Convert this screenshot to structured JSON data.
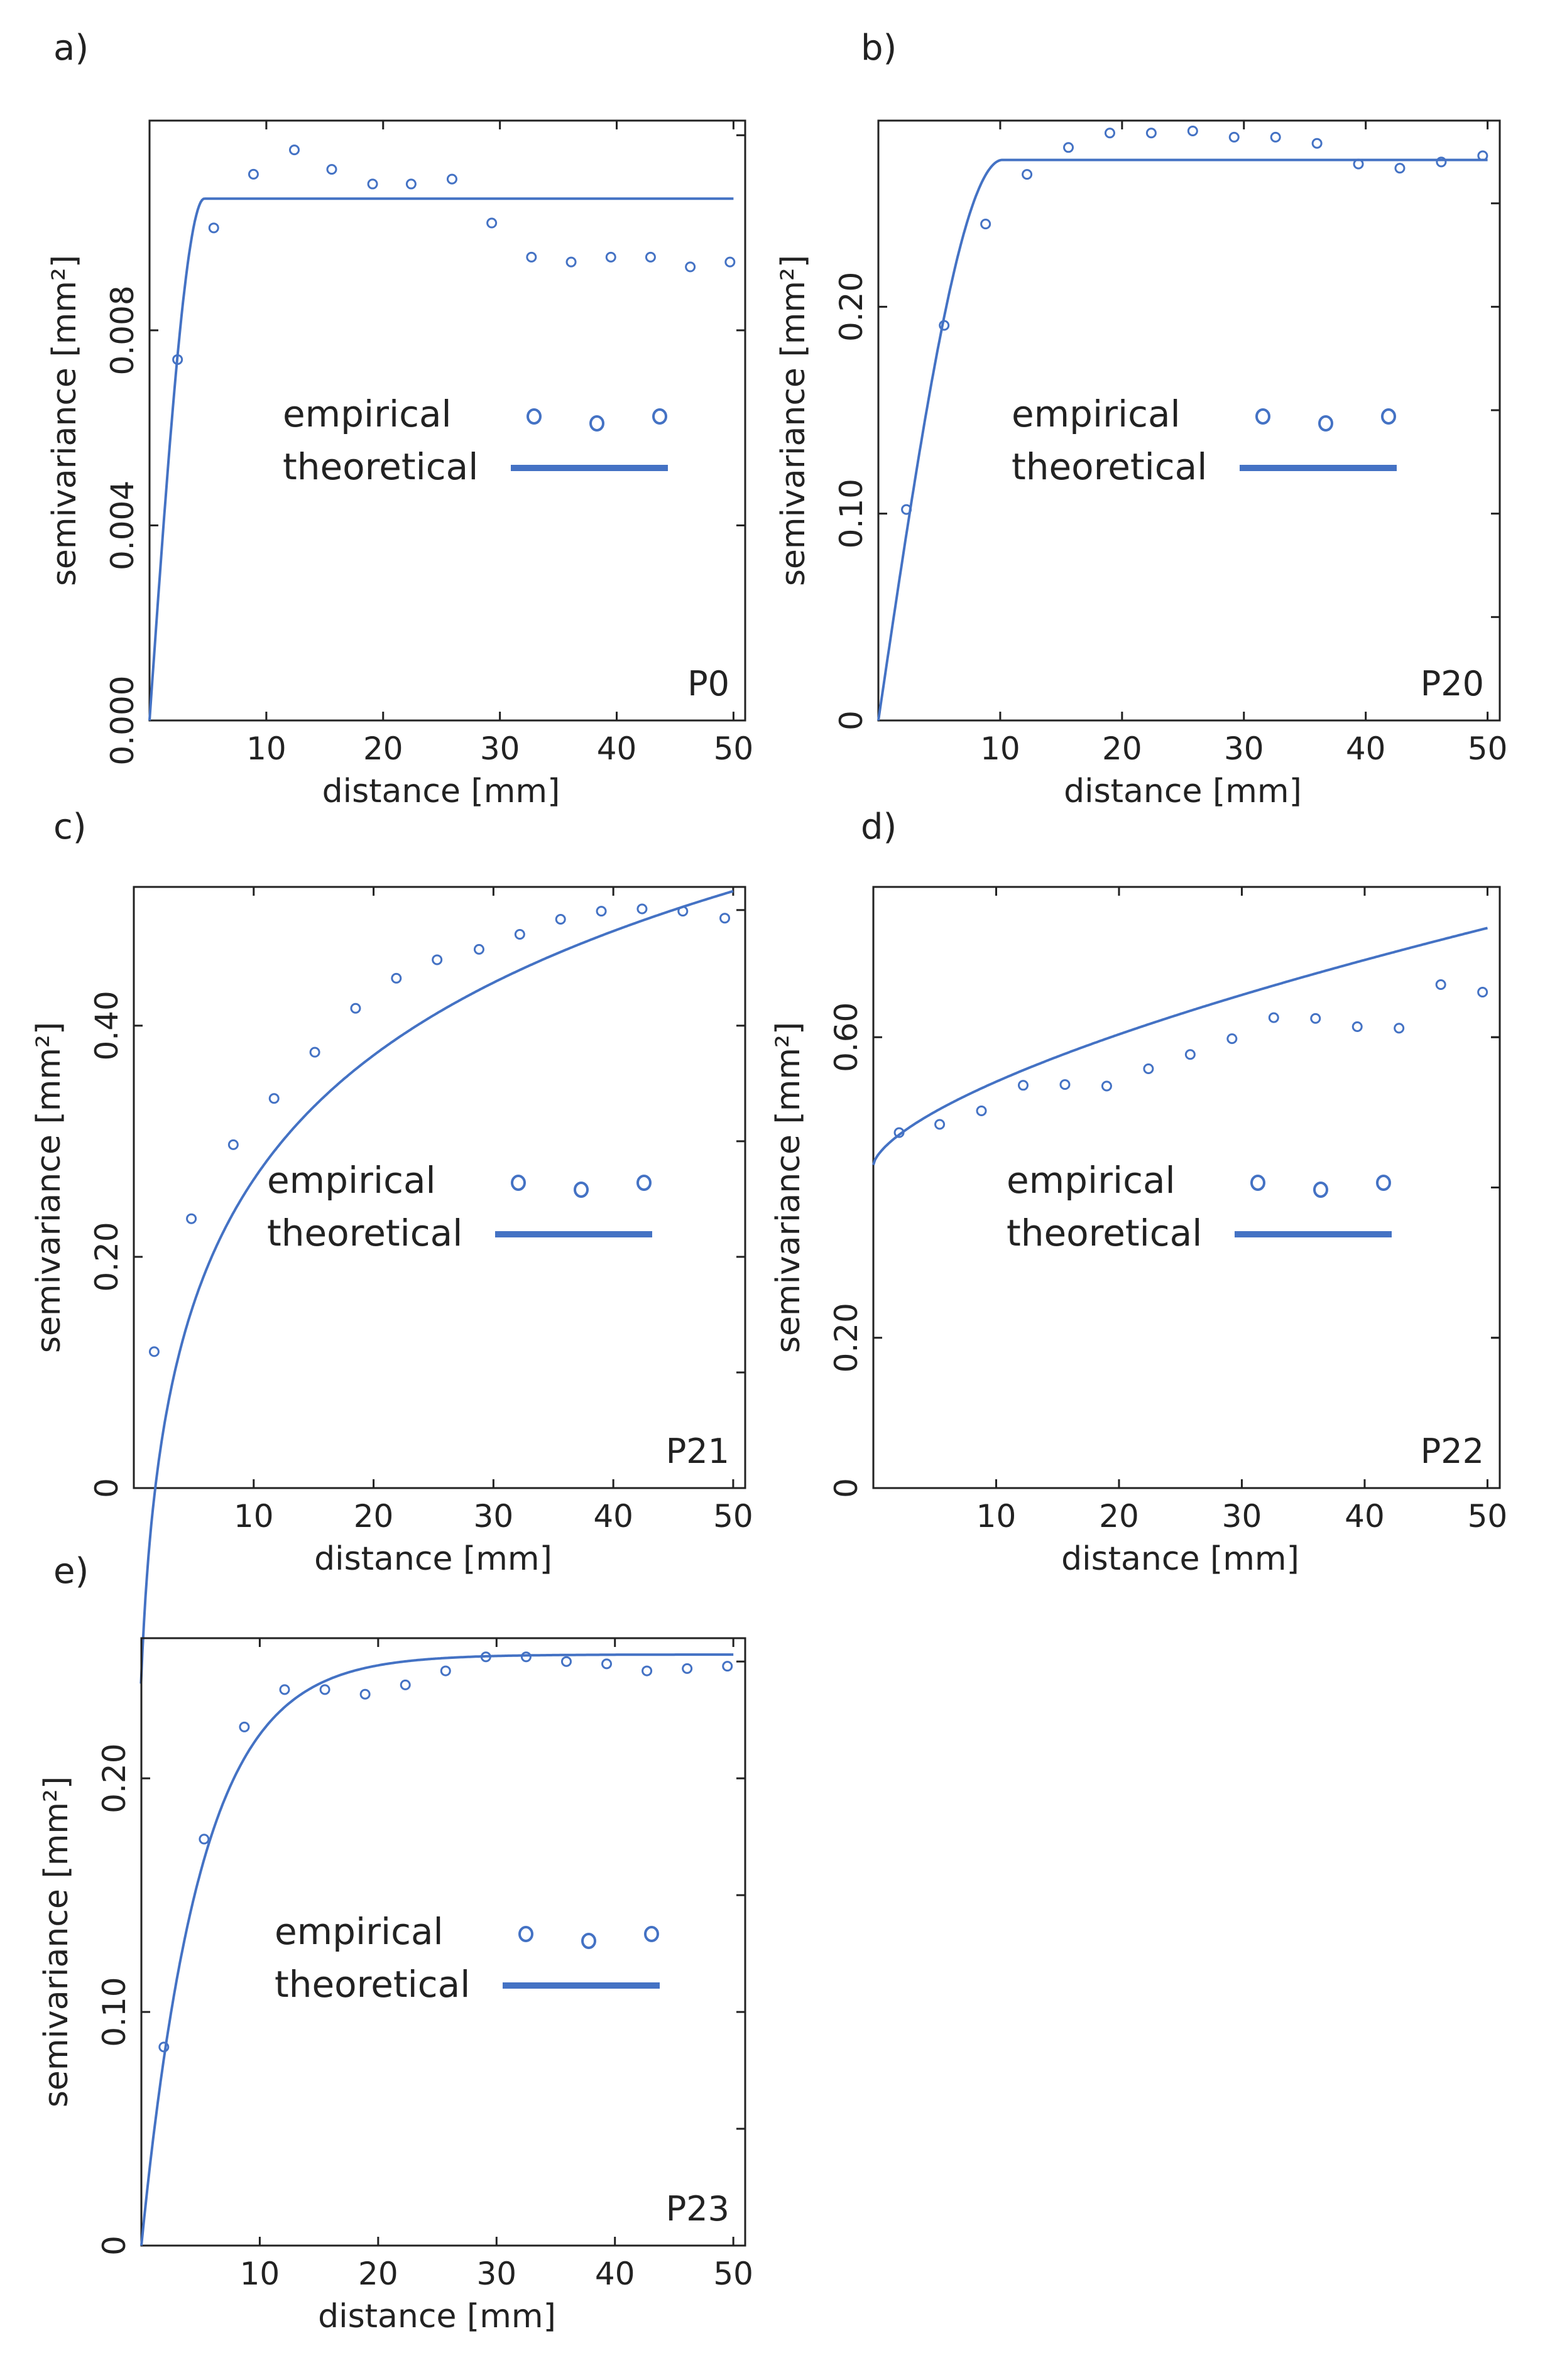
{
  "colors": {
    "series": "#4472c4",
    "axis": "#222222",
    "background": "#ffffff"
  },
  "legend": {
    "empirical": "empirical",
    "theoretical": "theoretical"
  },
  "chart_data": [
    {
      "panel": "a)",
      "id": "P0",
      "type": "scatter",
      "xlabel": "distance [mm]",
      "ylabel": "semivariance [mm²]",
      "xlim": [
        0,
        51
      ],
      "ylim": [
        0,
        0.0123
      ],
      "xticks": [
        10,
        20,
        30,
        40,
        50
      ],
      "yticks": [
        0,
        0.004,
        0.008
      ],
      "ytick_labels": [
        "0.000",
        "0.004",
        "0.008"
      ],
      "extra_right_ticks": [
        0.012
      ],
      "empirical": {
        "x": [
          2.4,
          5.5,
          8.9,
          12.4,
          15.6,
          19.1,
          22.4,
          25.9,
          29.3,
          32.7,
          36.1,
          39.5,
          42.9,
          46.3,
          49.7
        ],
        "y": [
          0.0074,
          0.0101,
          0.0112,
          0.0117,
          0.0113,
          0.011,
          0.011,
          0.0111,
          0.0102,
          0.0095,
          0.0094,
          0.0095,
          0.0095,
          0.0093,
          0.0094
        ]
      },
      "theoretical": {
        "model": "spherical",
        "nugget": 0,
        "sill": 0.0107,
        "range": 4.7,
        "xmax": 50
      }
    },
    {
      "panel": "b)",
      "id": "P20",
      "type": "scatter",
      "xlabel": "distance [mm]",
      "ylabel": "semivariance [mm²]",
      "xlim": [
        0,
        51
      ],
      "ylim": [
        0,
        0.29
      ],
      "xticks": [
        10,
        20,
        30,
        40,
        50
      ],
      "yticks": [
        0,
        0.1,
        0.2
      ],
      "ytick_labels": [
        "0",
        "0.10",
        "0.20"
      ],
      "extra_right_ticks": [
        0.05,
        0.15,
        0.25
      ],
      "empirical": {
        "x": [
          2.3,
          5.4,
          8.8,
          12.2,
          15.6,
          19.0,
          22.4,
          25.8,
          29.2,
          32.6,
          36.0,
          39.4,
          42.8,
          46.2,
          49.6
        ],
        "y": [
          0.102,
          0.191,
          0.24,
          0.264,
          0.277,
          0.284,
          0.284,
          0.285,
          0.282,
          0.282,
          0.279,
          0.269,
          0.267,
          0.27,
          0.273
        ],
        "xcoords_note": ""
      },
      "theoretical": {
        "model": "spherical",
        "nugget": 0,
        "sill": 0.271,
        "range": 10.2,
        "xmax": 50
      }
    },
    {
      "panel": "c)",
      "id": "P21",
      "type": "scatter",
      "xlabel": "distance [mm]",
      "ylabel": "semivariance [mm²]",
      "xlim": [
        0,
        51
      ],
      "ylim": [
        0,
        0.52
      ],
      "xticks": [
        10,
        20,
        30,
        40,
        50
      ],
      "yticks": [
        0,
        0.2,
        0.4
      ],
      "ytick_labels": [
        "0",
        "0.20",
        "0.40"
      ],
      "extra_right_ticks": [
        0.1,
        0.3,
        0.5
      ],
      "empirical": {
        "x": [
          1.7,
          4.8,
          8.3,
          11.7,
          15.1,
          18.5,
          21.9,
          25.3,
          28.8,
          32.2,
          35.6,
          39.0,
          42.4,
          45.8,
          49.3
        ],
        "y": [
          0.118,
          0.233,
          0.297,
          0.337,
          0.377,
          0.415,
          0.441,
          0.457,
          0.466,
          0.479,
          0.492,
          0.499,
          0.501,
          0.499,
          0.493
        ]
      },
      "theoretical": {
        "model": "logarithmic",
        "xmin": 0,
        "xmax": 50
      }
    },
    {
      "panel": "d)",
      "id": "P22",
      "type": "scatter",
      "xlabel": "distance [mm]",
      "ylabel": "semivariance [mm²]",
      "xlim": [
        0,
        51
      ],
      "ylim": [
        0,
        0.8
      ],
      "xticks": [
        10,
        20,
        30,
        40,
        50
      ],
      "yticks": [
        0,
        0.2,
        0.6
      ],
      "ytick_labels": [
        "0",
        "0.20",
        "0.60"
      ],
      "extra_right_ticks": [
        0.2,
        0.4,
        0.6
      ],
      "empirical": {
        "x": [
          2.1,
          5.4,
          8.8,
          12.2,
          15.6,
          19.0,
          22.4,
          25.8,
          29.2,
          32.6,
          36.0,
          39.4,
          42.8,
          46.2,
          49.6
        ],
        "y": [
          0.473,
          0.484,
          0.502,
          0.536,
          0.537,
          0.535,
          0.558,
          0.577,
          0.598,
          0.626,
          0.625,
          0.614,
          0.612,
          0.67,
          0.66
        ]
      },
      "theoretical": {
        "model": "power",
        "xmax": 50
      }
    },
    {
      "panel": "e)",
      "id": "P23",
      "type": "scatter",
      "xlabel": "distance [mm]",
      "ylabel": "semivariance [mm²]",
      "xlim": [
        0,
        51
      ],
      "ylim": [
        0,
        0.26
      ],
      "xticks": [
        10,
        20,
        30,
        40,
        50
      ],
      "yticks": [
        0,
        0.1,
        0.2
      ],
      "ytick_labels": [
        "0",
        "0.10",
        "0.20"
      ],
      "extra_right_ticks": [
        0.05,
        0.15,
        0.25
      ],
      "empirical": {
        "x": [
          1.9,
          5.3,
          8.7,
          12.1,
          15.5,
          18.9,
          22.3,
          25.7,
          29.1,
          32.5,
          35.9,
          39.3,
          42.7,
          46.1,
          49.5
        ],
        "y": [
          0.085,
          0.174,
          0.222,
          0.238,
          0.238,
          0.236,
          0.24,
          0.246,
          0.252,
          0.252,
          0.25,
          0.249,
          0.246,
          0.247,
          0.248
        ]
      },
      "theoretical": {
        "model": "exponential",
        "nugget": 0,
        "sill": 0.253,
        "range": 5.0,
        "xmax": 50
      }
    }
  ]
}
